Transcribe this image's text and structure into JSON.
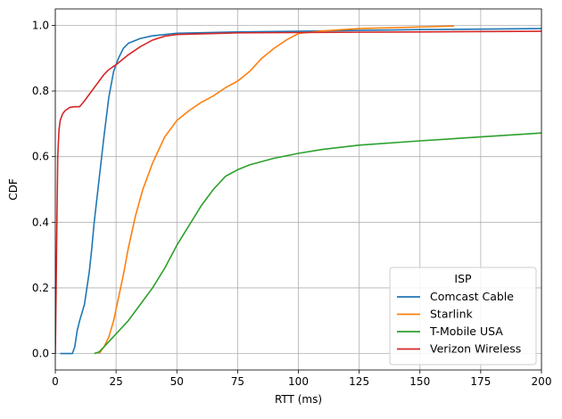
{
  "chart_data": {
    "type": "line",
    "xlabel": "RTT (ms)",
    "ylabel": "CDF",
    "xlim": [
      0,
      200
    ],
    "ylim": [
      -0.05,
      1.05
    ],
    "xticks": [
      0,
      25,
      50,
      75,
      100,
      125,
      150,
      175,
      200
    ],
    "xtick_labels": [
      "0",
      "25",
      "50",
      "75",
      "100",
      "125",
      "150",
      "175",
      "200"
    ],
    "yticks": [
      0.0,
      0.2,
      0.4,
      0.6,
      0.8,
      1.0
    ],
    "ytick_labels": [
      "0.0",
      "0.2",
      "0.4",
      "0.6",
      "0.8",
      "1.0"
    ],
    "grid": true,
    "legend": {
      "title": "ISP",
      "placement": "lower-right"
    },
    "series": [
      {
        "name": "Comcast Cable",
        "color": "#1f77b4",
        "points": [
          [
            2,
            0
          ],
          [
            7,
            0
          ],
          [
            8,
            0.02
          ],
          [
            9,
            0.07
          ],
          [
            10,
            0.1
          ],
          [
            12,
            0.15
          ],
          [
            14,
            0.25
          ],
          [
            15,
            0.32
          ],
          [
            16,
            0.4
          ],
          [
            18,
            0.53
          ],
          [
            20,
            0.66
          ],
          [
            22,
            0.78
          ],
          [
            24,
            0.86
          ],
          [
            26,
            0.9
          ],
          [
            28,
            0.93
          ],
          [
            30,
            0.945
          ],
          [
            35,
            0.96
          ],
          [
            40,
            0.968
          ],
          [
            50,
            0.976
          ],
          [
            75,
            0.98
          ],
          [
            100,
            0.982
          ],
          [
            150,
            0.987
          ],
          [
            200,
            0.99
          ]
        ]
      },
      {
        "name": "Starlink",
        "color": "#ff7f0e",
        "points": [
          [
            18,
            0
          ],
          [
            20,
            0.02
          ],
          [
            22,
            0.05
          ],
          [
            24,
            0.1
          ],
          [
            26,
            0.17
          ],
          [
            28,
            0.24
          ],
          [
            30,
            0.32
          ],
          [
            33,
            0.42
          ],
          [
            36,
            0.5
          ],
          [
            40,
            0.58
          ],
          [
            45,
            0.66
          ],
          [
            50,
            0.71
          ],
          [
            55,
            0.74
          ],
          [
            60,
            0.765
          ],
          [
            65,
            0.785
          ],
          [
            70,
            0.81
          ],
          [
            75,
            0.83
          ],
          [
            80,
            0.86
          ],
          [
            85,
            0.9
          ],
          [
            90,
            0.93
          ],
          [
            95,
            0.955
          ],
          [
            100,
            0.975
          ],
          [
            110,
            0.983
          ],
          [
            125,
            0.99
          ],
          [
            150,
            0.995
          ],
          [
            164,
            0.998
          ]
        ]
      },
      {
        "name": "T-Mobile USA",
        "color": "#2ca02c",
        "points": [
          [
            16,
            0
          ],
          [
            18,
            0.005
          ],
          [
            20,
            0.02
          ],
          [
            25,
            0.06
          ],
          [
            30,
            0.1
          ],
          [
            35,
            0.15
          ],
          [
            40,
            0.2
          ],
          [
            45,
            0.26
          ],
          [
            50,
            0.33
          ],
          [
            55,
            0.39
          ],
          [
            60,
            0.45
          ],
          [
            65,
            0.5
          ],
          [
            70,
            0.54
          ],
          [
            75,
            0.56
          ],
          [
            80,
            0.575
          ],
          [
            90,
            0.595
          ],
          [
            100,
            0.61
          ],
          [
            110,
            0.622
          ],
          [
            125,
            0.635
          ],
          [
            150,
            0.648
          ],
          [
            175,
            0.66
          ],
          [
            200,
            0.672
          ]
        ]
      },
      {
        "name": "Verizon Wireless",
        "color": "#d62728",
        "points": [
          [
            0,
            0
          ],
          [
            0.5,
            0.3
          ],
          [
            1,
            0.6
          ],
          [
            1.5,
            0.68
          ],
          [
            2,
            0.71
          ],
          [
            3,
            0.73
          ],
          [
            4,
            0.74
          ],
          [
            6,
            0.75
          ],
          [
            8,
            0.752
          ],
          [
            10,
            0.752
          ],
          [
            12,
            0.77
          ],
          [
            14,
            0.79
          ],
          [
            16,
            0.81
          ],
          [
            18,
            0.83
          ],
          [
            20,
            0.85
          ],
          [
            22,
            0.865
          ],
          [
            25,
            0.88
          ],
          [
            30,
            0.91
          ],
          [
            35,
            0.935
          ],
          [
            40,
            0.955
          ],
          [
            45,
            0.967
          ],
          [
            50,
            0.972
          ],
          [
            75,
            0.977
          ],
          [
            100,
            0.978
          ],
          [
            150,
            0.98
          ],
          [
            200,
            0.982
          ]
        ]
      }
    ]
  }
}
